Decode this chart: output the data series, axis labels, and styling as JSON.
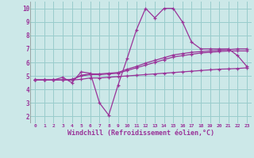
{
  "x": [
    0,
    1,
    2,
    3,
    4,
    5,
    6,
    7,
    8,
    9,
    10,
    11,
    12,
    13,
    14,
    15,
    16,
    17,
    18,
    19,
    20,
    21,
    22,
    23
  ],
  "line1": [
    4.7,
    4.7,
    4.7,
    4.9,
    4.5,
    5.3,
    5.2,
    3.0,
    2.1,
    4.3,
    6.3,
    8.4,
    10.0,
    9.3,
    10.0,
    10.0,
    9.0,
    7.5,
    7.0,
    7.0,
    7.0,
    7.0,
    6.5,
    5.7
  ],
  "line2": [
    4.7,
    4.7,
    4.7,
    4.7,
    4.7,
    5.05,
    5.15,
    5.15,
    5.2,
    5.25,
    5.5,
    5.7,
    5.95,
    6.15,
    6.35,
    6.55,
    6.65,
    6.75,
    6.8,
    6.85,
    6.9,
    6.95,
    7.0,
    7.0
  ],
  "line3": [
    4.7,
    4.7,
    4.7,
    4.7,
    4.75,
    5.0,
    5.1,
    5.1,
    5.15,
    5.2,
    5.4,
    5.6,
    5.8,
    6.0,
    6.2,
    6.4,
    6.5,
    6.6,
    6.7,
    6.75,
    6.8,
    6.85,
    6.85,
    6.85
  ],
  "line4": [
    4.7,
    4.7,
    4.7,
    4.7,
    4.7,
    4.75,
    4.85,
    4.85,
    4.9,
    4.95,
    5.0,
    5.05,
    5.1,
    5.15,
    5.2,
    5.25,
    5.3,
    5.35,
    5.4,
    5.45,
    5.5,
    5.52,
    5.55,
    5.6
  ],
  "color": "#993399",
  "bg_color": "#cce8e8",
  "grid_color": "#99cccc",
  "xlabel": "Windchill (Refroidissement éolien,°C)",
  "ylim": [
    1.5,
    10.5
  ],
  "xlim": [
    -0.5,
    23.5
  ],
  "yticks": [
    2,
    3,
    4,
    5,
    6,
    7,
    8,
    9,
    10
  ],
  "xticks": [
    0,
    1,
    2,
    3,
    4,
    5,
    6,
    7,
    8,
    9,
    10,
    11,
    12,
    13,
    14,
    15,
    16,
    17,
    18,
    19,
    20,
    21,
    22,
    23
  ]
}
